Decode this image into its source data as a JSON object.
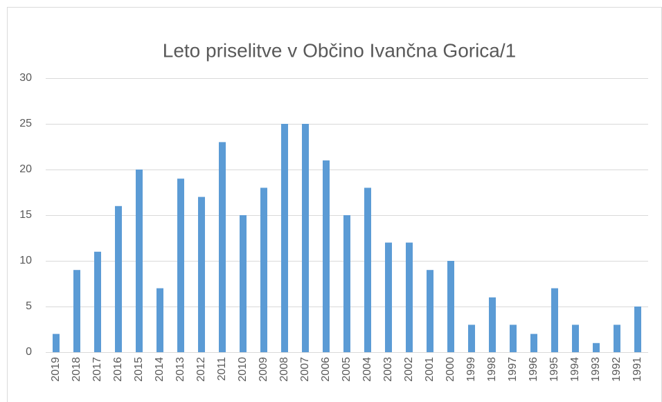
{
  "chart_data": {
    "type": "bar",
    "title": "Leto priselitve v Občino Ivančna Gorica/1",
    "categories": [
      "2019",
      "2018",
      "2017",
      "2016",
      "2015",
      "2014",
      "2013",
      "2012",
      "2011",
      "2010",
      "2009",
      "2008",
      "2007",
      "2006",
      "2005",
      "2004",
      "2003",
      "2002",
      "2001",
      "2000",
      "1999",
      "1998",
      "1997",
      "1996",
      "1995",
      "1994",
      "1993",
      "1992",
      "1991"
    ],
    "values": [
      2,
      9,
      11,
      16,
      20,
      7,
      19,
      17,
      23,
      15,
      18,
      25,
      25,
      21,
      15,
      18,
      12,
      12,
      9,
      10,
      3,
      6,
      3,
      2,
      7,
      3,
      1,
      3,
      5
    ],
    "color": "#5b9bd5",
    "ylim": [
      0,
      30
    ],
    "yticks": [
      0,
      5,
      10,
      15,
      20,
      25,
      30
    ],
    "grid": true
  }
}
